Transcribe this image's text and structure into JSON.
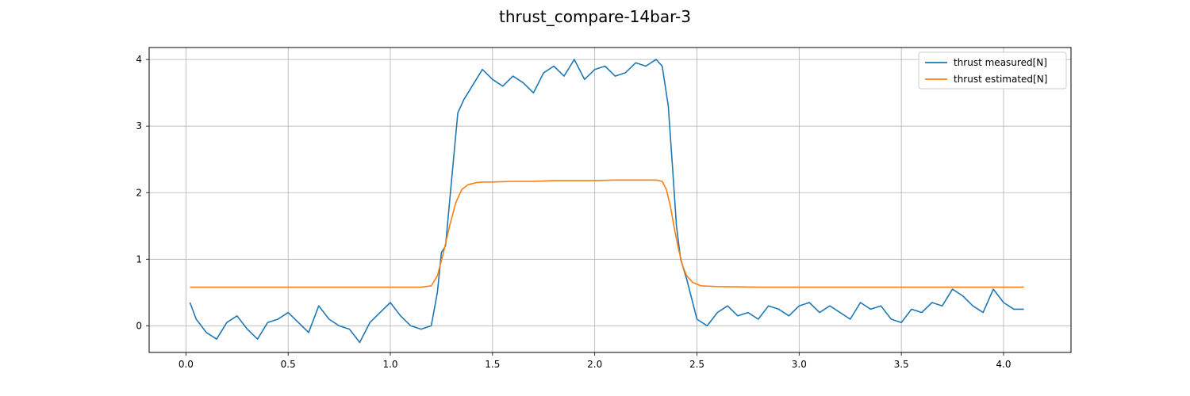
{
  "chart_data": {
    "type": "line",
    "title": "thrust_compare-14bar-3",
    "xlabel": "",
    "ylabel": "",
    "xlim": [
      -0.18,
      4.33
    ],
    "ylim": [
      -0.4,
      4.18
    ],
    "xticks": [
      0.0,
      0.5,
      1.0,
      1.5,
      2.0,
      2.5,
      3.0,
      3.5,
      4.0
    ],
    "xtick_labels": [
      "0.0",
      "0.5",
      "1.0",
      "1.5",
      "2.0",
      "2.5",
      "3.0",
      "3.5",
      "4.0"
    ],
    "yticks": [
      0,
      1,
      2,
      3,
      4
    ],
    "ytick_labels": [
      "0",
      "1",
      "2",
      "3",
      "4"
    ],
    "grid": true,
    "legend_position": "top-right",
    "series": [
      {
        "name": "thrust measured[N]",
        "color": "#1f77b4",
        "x": [
          0.02,
          0.05,
          0.1,
          0.15,
          0.2,
          0.25,
          0.3,
          0.35,
          0.4,
          0.45,
          0.5,
          0.55,
          0.6,
          0.65,
          0.7,
          0.75,
          0.8,
          0.85,
          0.9,
          0.95,
          1.0,
          1.05,
          1.1,
          1.15,
          1.2,
          1.23,
          1.25,
          1.27,
          1.3,
          1.33,
          1.36,
          1.4,
          1.45,
          1.5,
          1.55,
          1.6,
          1.65,
          1.7,
          1.75,
          1.8,
          1.85,
          1.9,
          1.95,
          2.0,
          2.05,
          2.1,
          2.15,
          2.2,
          2.25,
          2.3,
          2.33,
          2.36,
          2.38,
          2.4,
          2.42,
          2.45,
          2.5,
          2.55,
          2.6,
          2.65,
          2.7,
          2.75,
          2.8,
          2.85,
          2.9,
          2.95,
          3.0,
          3.05,
          3.1,
          3.15,
          3.2,
          3.25,
          3.3,
          3.35,
          3.4,
          3.45,
          3.5,
          3.55,
          3.6,
          3.65,
          3.7,
          3.75,
          3.8,
          3.85,
          3.9,
          3.95,
          4.0,
          4.05,
          4.1
        ],
        "y": [
          0.35,
          0.1,
          -0.1,
          -0.2,
          0.05,
          0.15,
          -0.05,
          -0.2,
          0.05,
          0.1,
          0.2,
          0.05,
          -0.1,
          0.3,
          0.1,
          0.0,
          -0.05,
          -0.25,
          0.05,
          0.2,
          0.35,
          0.15,
          0.0,
          -0.05,
          0.0,
          0.5,
          1.1,
          1.2,
          2.2,
          3.2,
          3.4,
          3.6,
          3.85,
          3.7,
          3.6,
          3.75,
          3.65,
          3.5,
          3.8,
          3.9,
          3.75,
          4.0,
          3.7,
          3.85,
          3.9,
          3.75,
          3.8,
          3.95,
          3.9,
          4.0,
          3.9,
          3.3,
          2.4,
          1.5,
          1.0,
          0.7,
          0.1,
          0.0,
          0.2,
          0.3,
          0.15,
          0.2,
          0.1,
          0.3,
          0.25,
          0.15,
          0.3,
          0.35,
          0.2,
          0.3,
          0.2,
          0.1,
          0.35,
          0.25,
          0.3,
          0.1,
          0.05,
          0.25,
          0.2,
          0.35,
          0.3,
          0.55,
          0.45,
          0.3,
          0.2,
          0.55,
          0.35,
          0.25,
          0.25
        ]
      },
      {
        "name": "thrust estimated[N]",
        "color": "#ff7f0e",
        "x": [
          0.02,
          0.2,
          0.4,
          0.6,
          0.8,
          1.0,
          1.15,
          1.2,
          1.23,
          1.26,
          1.29,
          1.32,
          1.35,
          1.38,
          1.42,
          1.46,
          1.5,
          1.6,
          1.7,
          1.8,
          1.9,
          2.0,
          2.1,
          2.2,
          2.3,
          2.33,
          2.35,
          2.37,
          2.39,
          2.41,
          2.43,
          2.45,
          2.48,
          2.52,
          2.6,
          2.8,
          3.0,
          3.2,
          3.4,
          3.6,
          3.8,
          4.0,
          4.1
        ],
        "y": [
          0.58,
          0.58,
          0.58,
          0.58,
          0.58,
          0.58,
          0.58,
          0.6,
          0.75,
          1.1,
          1.5,
          1.85,
          2.05,
          2.12,
          2.15,
          2.16,
          2.16,
          2.17,
          2.17,
          2.18,
          2.18,
          2.18,
          2.19,
          2.19,
          2.19,
          2.17,
          2.05,
          1.8,
          1.45,
          1.15,
          0.9,
          0.75,
          0.65,
          0.6,
          0.59,
          0.58,
          0.58,
          0.58,
          0.58,
          0.58,
          0.58,
          0.58,
          0.58
        ]
      }
    ]
  }
}
